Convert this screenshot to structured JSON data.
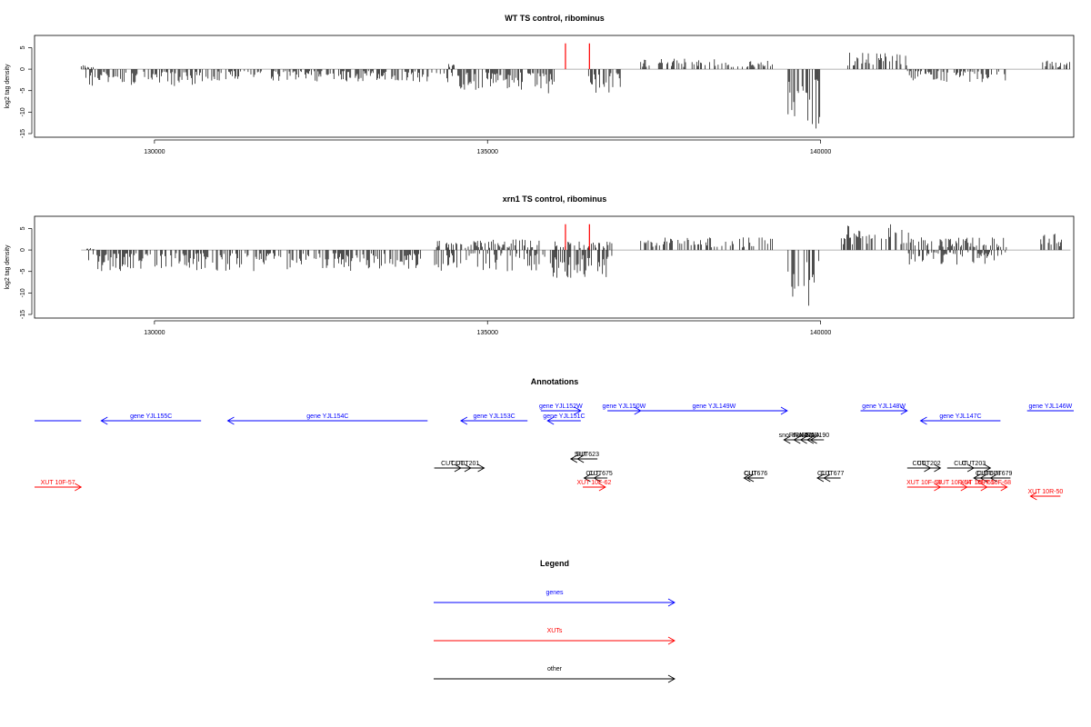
{
  "chart_data": [
    {
      "type": "bar",
      "title": "WT TS control, ribominus",
      "ylabel": "log2 tag density",
      "xlabel": "",
      "xlim": [
        128200,
        143800
      ],
      "ylim": [
        -15,
        7
      ],
      "yticks": [
        5,
        0,
        -5,
        -10,
        -15
      ],
      "xticks": [
        130000,
        135000,
        140000
      ],
      "xtick_labels": [
        "130000",
        "135000",
        "140000"
      ],
      "baseline": 0,
      "red_markers": [
        {
          "x": 136170,
          "y_top": 6
        },
        {
          "x": 136530,
          "y_top": 6
        }
      ],
      "signal_profile": {
        "positive_regions": [
          {
            "from": 128900,
            "to": 129100,
            "max": 1
          },
          {
            "from": 134400,
            "to": 134500,
            "max": 1.5
          },
          {
            "from": 137300,
            "to": 138800,
            "max": 2.5
          },
          {
            "from": 138800,
            "to": 139300,
            "max": 2
          },
          {
            "from": 140400,
            "to": 141300,
            "max": 4
          },
          {
            "from": 143300,
            "to": 143800,
            "max": 2
          }
        ],
        "negative_regions": [
          {
            "from": 128900,
            "to": 130700,
            "min": -4
          },
          {
            "from": 130700,
            "to": 134300,
            "min": -3
          },
          {
            "from": 134300,
            "to": 135500,
            "min": -5
          },
          {
            "from": 135500,
            "to": 136000,
            "min": -6
          },
          {
            "from": 136500,
            "to": 137000,
            "min": -6
          },
          {
            "from": 139500,
            "to": 140000,
            "min": -14.5
          },
          {
            "from": 141300,
            "to": 142800,
            "min": -3
          }
        ]
      }
    },
    {
      "type": "bar",
      "title": "xrn1 TS control, ribominus",
      "ylabel": "log2 tag density",
      "xlabel": "",
      "xlim": [
        128200,
        143800
      ],
      "ylim": [
        -15,
        7
      ],
      "yticks": [
        5,
        0,
        -5,
        -10,
        -15
      ],
      "xticks": [
        130000,
        135000,
        140000
      ],
      "xtick_labels": [
        "130000",
        "135000",
        "140000"
      ],
      "baseline": 0,
      "red_markers": [
        {
          "x": 136170,
          "y_top": 6
        },
        {
          "x": 136530,
          "y_top": 6
        }
      ],
      "signal_profile": {
        "positive_regions": [
          {
            "from": 128900,
            "to": 129100,
            "max": 0.5
          },
          {
            "from": 134200,
            "to": 135800,
            "max": 2.5
          },
          {
            "from": 136000,
            "to": 136900,
            "max": 2
          },
          {
            "from": 137300,
            "to": 139300,
            "max": 3
          },
          {
            "from": 140300,
            "to": 141400,
            "max": 6
          },
          {
            "from": 141400,
            "to": 142800,
            "max": 3
          },
          {
            "from": 143300,
            "to": 143800,
            "max": 4
          }
        ],
        "negative_regions": [
          {
            "from": 129000,
            "to": 134000,
            "min": -5
          },
          {
            "from": 134200,
            "to": 135800,
            "min": -5
          },
          {
            "from": 135800,
            "to": 136900,
            "min": -6.5
          },
          {
            "from": 139500,
            "to": 140000,
            "min": -15
          },
          {
            "from": 141300,
            "to": 142800,
            "min": -3.5
          }
        ]
      }
    },
    {
      "type": "diagram",
      "title": "Annotations",
      "xlim": [
        128200,
        143800
      ],
      "features": [
        {
          "label": "",
          "class": "gene",
          "color": "#0000ff",
          "from": 128200,
          "to": 128900,
          "strand": "none",
          "row": 1
        },
        {
          "label": "gene YJL155C",
          "class": "gene",
          "color": "#0000ff",
          "from": 129200,
          "to": 130700,
          "strand": "-",
          "row": 1
        },
        {
          "label": "gene YJL154C",
          "class": "gene",
          "color": "#0000ff",
          "from": 131100,
          "to": 134100,
          "strand": "-",
          "row": 1
        },
        {
          "label": "gene YJL153C",
          "class": "gene",
          "color": "#0000ff",
          "from": 134600,
          "to": 135600,
          "strand": "-",
          "row": 1
        },
        {
          "label": "gene YJL152W",
          "class": "gene",
          "color": "#0000ff",
          "from": 135800,
          "to": 136400,
          "strand": "+",
          "row": 0
        },
        {
          "label": "gene YJL151C",
          "class": "gene",
          "color": "#0000ff",
          "from": 135900,
          "to": 136400,
          "strand": "-",
          "row": 1
        },
        {
          "label": "gene YJL150W",
          "class": "gene",
          "color": "#0000ff",
          "from": 136800,
          "to": 137300,
          "strand": "+",
          "row": 0
        },
        {
          "label": "gene YJL149W",
          "class": "gene",
          "color": "#0000ff",
          "from": 137300,
          "to": 139500,
          "strand": "+",
          "row": 0
        },
        {
          "label": "gene YJL148W",
          "class": "gene",
          "color": "#0000ff",
          "from": 140600,
          "to": 141300,
          "strand": "+",
          "row": 0
        },
        {
          "label": "gene YJL147C",
          "class": "gene",
          "color": "#0000ff",
          "from": 141500,
          "to": 142700,
          "strand": "-",
          "row": 1
        },
        {
          "label": "gene YJL146W",
          "class": "gene",
          "color": "#0000ff",
          "from": 143100,
          "to": 143800,
          "strand": "none",
          "row": 0
        },
        {
          "label": "snoRNA",
          "class": "other",
          "color": "#000000",
          "from": 139450,
          "to": 139650,
          "strand": "-",
          "row": 2
        },
        {
          "label": "tRNA",
          "class": "other",
          "color": "#000000",
          "from": 139600,
          "to": 139800,
          "strand": "-",
          "row": 2
        },
        {
          "label": "tRNA",
          "class": "other",
          "color": "#000000",
          "from": 139700,
          "to": 139900,
          "strand": "-",
          "row": 2
        },
        {
          "label": "tRNA",
          "class": "other",
          "color": "#000000",
          "from": 139800,
          "to": 139950,
          "strand": "-",
          "row": 2
        },
        {
          "label": "SNR190",
          "class": "other",
          "color": "#000000",
          "from": 139850,
          "to": 140050,
          "strand": "-",
          "row": 2
        },
        {
          "label": "SUT",
          "class": "other",
          "color": "#000000",
          "from": 136250,
          "to": 136550,
          "strand": "-",
          "row": 3
        },
        {
          "label": "SUT623",
          "class": "other",
          "color": "#000000",
          "from": 136350,
          "to": 136650,
          "strand": "-",
          "row": 3
        },
        {
          "label": "CUT",
          "class": "other",
          "color": "#000000",
          "from": 134200,
          "to": 134600,
          "strand": "+",
          "row": 4
        },
        {
          "label": "CUT",
          "class": "other",
          "color": "#000000",
          "from": 134350,
          "to": 134750,
          "strand": "+",
          "row": 4
        },
        {
          "label": "CUT201",
          "class": "other",
          "color": "#000000",
          "from": 134450,
          "to": 134950,
          "strand": "+",
          "row": 4
        },
        {
          "label": "CUT",
          "class": "other",
          "color": "#000000",
          "from": 136450,
          "to": 136700,
          "strand": "-",
          "row": 5
        },
        {
          "label": "CUT675",
          "class": "other",
          "color": "#000000",
          "from": 136600,
          "to": 136800,
          "strand": "-",
          "row": 5
        },
        {
          "label": "CUT",
          "class": "other",
          "color": "#000000",
          "from": 138850,
          "to": 139050,
          "strand": "-",
          "row": 5
        },
        {
          "label": "CUT676",
          "class": "other",
          "color": "#000000",
          "from": 138900,
          "to": 139150,
          "strand": "-",
          "row": 5
        },
        {
          "label": "CUT",
          "class": "other",
          "color": "#000000",
          "from": 139950,
          "to": 140150,
          "strand": "-",
          "row": 5
        },
        {
          "label": "CUT677",
          "class": "other",
          "color": "#000000",
          "from": 140050,
          "to": 140300,
          "strand": "-",
          "row": 5
        },
        {
          "label": "CUT",
          "class": "other",
          "color": "#000000",
          "from": 141300,
          "to": 141650,
          "strand": "+",
          "row": 4
        },
        {
          "label": "CUT202",
          "class": "other",
          "color": "#000000",
          "from": 141450,
          "to": 141800,
          "strand": "+",
          "row": 4
        },
        {
          "label": "CUT",
          "class": "other",
          "color": "#000000",
          "from": 141900,
          "to": 142300,
          "strand": "+",
          "row": 4
        },
        {
          "label": "CUT203",
          "class": "other",
          "color": "#000000",
          "from": 142050,
          "to": 142550,
          "strand": "+",
          "row": 4
        },
        {
          "label": "CUT",
          "class": "other",
          "color": "#000000",
          "from": 142300,
          "to": 142550,
          "strand": "-",
          "row": 5
        },
        {
          "label": "CUT678",
          "class": "other",
          "color": "#000000",
          "from": 142400,
          "to": 142650,
          "strand": "-",
          "row": 5
        },
        {
          "label": "CUT679",
          "class": "other",
          "color": "#000000",
          "from": 142550,
          "to": 142850,
          "strand": "-",
          "row": 5
        },
        {
          "label": "XUT 10F-57",
          "class": "XUT",
          "color": "#ff0000",
          "from": 128200,
          "to": 128900,
          "strand": "+",
          "row": 6
        },
        {
          "label": "XUT 10F-62",
          "class": "XUT",
          "color": "#ff0000",
          "from": 136430,
          "to": 136770,
          "strand": "+",
          "row": 6
        },
        {
          "label": "XUT 10F-63",
          "class": "XUT",
          "color": "#ff0000",
          "from": 141300,
          "to": 141800,
          "strand": "+",
          "row": 6
        },
        {
          "label": "XUT 10F-64",
          "class": "XUT",
          "color": "#ff0000",
          "from": 141800,
          "to": 142200,
          "strand": "+",
          "row": 6
        },
        {
          "label": "XUT 10F-65",
          "class": "XUT",
          "color": "#ff0000",
          "from": 142200,
          "to": 142500,
          "strand": "+",
          "row": 6
        },
        {
          "label": "XUT 10F-68",
          "class": "XUT",
          "color": "#ff0000",
          "from": 142400,
          "to": 142800,
          "strand": "+",
          "row": 6
        },
        {
          "label": "XUT 10R-50",
          "class": "XUT",
          "color": "#ff0000",
          "from": 143150,
          "to": 143600,
          "strand": "-",
          "row": 7
        }
      ]
    },
    {
      "type": "legend",
      "title": "Legend",
      "entries": [
        {
          "label": "genes",
          "color": "#0000ff"
        },
        {
          "label": "XUTs",
          "color": "#ff0000"
        },
        {
          "label": "other",
          "color": "#000000"
        }
      ]
    }
  ]
}
